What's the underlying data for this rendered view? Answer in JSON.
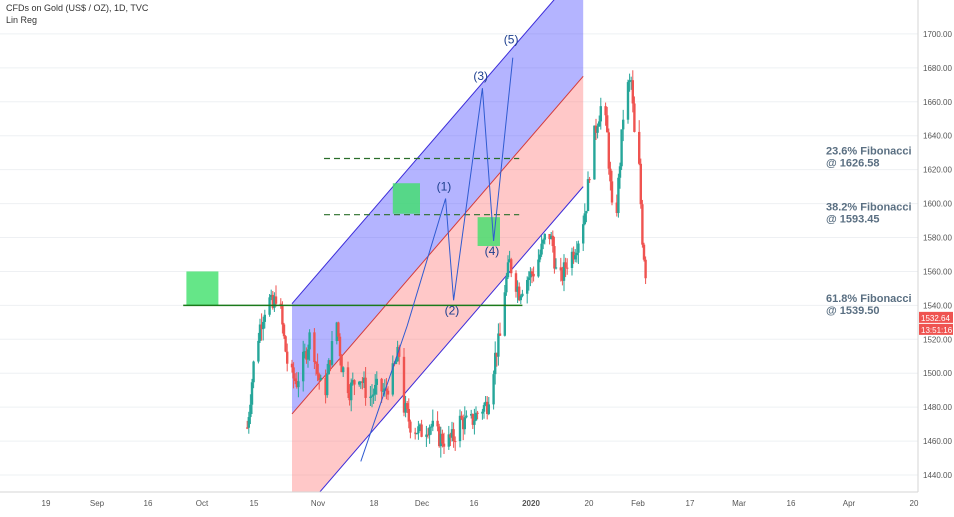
{
  "header": {
    "title": "CFDs on Gold (US$ / OZ), 1D, TVC",
    "indicator": "Lin Reg"
  },
  "colors": {
    "up": "#26a69a",
    "down": "#ef5350",
    "upper_channel": "#4c4cff",
    "lower_channel": "#ff7b7b",
    "channel_line": "#3b2bd9",
    "support": "#1b7a1b",
    "fib_line": "#2a6e2a",
    "fib_text": "#5a6f82",
    "highlight": "#3ee06a",
    "price_badge": "#ef5350"
  },
  "chart_data": {
    "type": "candlestick",
    "title": "CFDs on Gold (US$ / OZ), 1D, TVC",
    "ylim": [
      1430,
      1720
    ],
    "yticks": [
      1440,
      1460,
      1480,
      1500,
      1520,
      1540,
      1560,
      1580,
      1600,
      1620,
      1640,
      1660,
      1680,
      1700
    ],
    "xticks": [
      "19",
      "Sep",
      "16",
      "Oct",
      "15",
      "Nov",
      "18",
      "Dec",
      "16",
      "2020",
      "20",
      "Feb",
      "17",
      "Mar",
      "16",
      "Apr",
      "20"
    ],
    "bold_xtick": "2020",
    "candles_anchor": [
      {
        "day": -28,
        "close": 1468
      },
      {
        "day": -24,
        "close": 1505
      },
      {
        "day": -20,
        "close": 1528
      },
      {
        "day": -15,
        "close": 1545
      },
      {
        "day": -12,
        "close": 1538
      },
      {
        "day": -9,
        "close": 1550
      },
      {
        "day": -5,
        "close": 1520
      },
      {
        "day": -2,
        "close": 1500
      },
      {
        "day": 3,
        "close": 1495
      },
      {
        "day": 8,
        "close": 1510
      },
      {
        "day": 12,
        "close": 1525
      },
      {
        "day": 16,
        "close": 1500
      },
      {
        "day": 20,
        "close": 1485
      },
      {
        "day": 24,
        "close": 1510
      },
      {
        "day": 28,
        "close": 1530
      },
      {
        "day": 31,
        "close": 1505
      },
      {
        "day": 36,
        "close": 1490
      },
      {
        "day": 42,
        "close": 1500
      },
      {
        "day": 48,
        "close": 1485
      },
      {
        "day": 54,
        "close": 1492
      },
      {
        "day": 58,
        "close": 1488
      },
      {
        "day": 63,
        "close": 1500
      },
      {
        "day": 66,
        "close": 1510
      },
      {
        "day": 68,
        "close": 1512
      },
      {
        "day": 70,
        "close": 1480
      },
      {
        "day": 74,
        "close": 1470
      },
      {
        "day": 80,
        "close": 1465
      },
      {
        "day": 86,
        "close": 1470
      },
      {
        "day": 92,
        "close": 1462
      },
      {
        "day": 97,
        "close": 1460
      },
      {
        "day": 101,
        "close": 1462
      },
      {
        "day": 105,
        "close": 1472
      },
      {
        "day": 111,
        "close": 1470
      },
      {
        "day": 117,
        "close": 1478
      },
      {
        "day": 122,
        "close": 1482
      },
      {
        "day": 127,
        "close": 1510
      },
      {
        "day": 131,
        "close": 1525
      },
      {
        "day": 133,
        "close": 1550
      },
      {
        "day": 136,
        "close": 1565
      },
      {
        "day": 139,
        "close": 1556
      },
      {
        "day": 142,
        "close": 1548
      },
      {
        "day": 146,
        "close": 1555
      },
      {
        "day": 151,
        "close": 1560
      },
      {
        "day": 155,
        "close": 1570
      },
      {
        "day": 160,
        "close": 1585
      },
      {
        "day": 163,
        "close": 1575
      },
      {
        "day": 165,
        "close": 1560
      },
      {
        "day": 168,
        "close": 1555
      },
      {
        "day": 172,
        "close": 1566
      },
      {
        "day": 176,
        "close": 1572
      },
      {
        "day": 180,
        "close": 1582
      },
      {
        "day": 184,
        "close": 1600
      },
      {
        "day": 187,
        "close": 1630
      },
      {
        "day": 191,
        "close": 1650
      },
      {
        "day": 194,
        "close": 1660
      },
      {
        "day": 197,
        "close": 1640
      },
      {
        "day": 200,
        "close": 1595
      },
      {
        "day": 202,
        "close": 1585
      },
      {
        "day": 205,
        "close": 1625
      },
      {
        "day": 208,
        "close": 1665
      },
      {
        "day": 212,
        "close": 1672
      },
      {
        "day": 214,
        "close": 1640
      },
      {
        "day": 217,
        "close": 1620
      },
      {
        "day": 219,
        "close": 1580
      },
      {
        "day": 221,
        "close": 1560
      },
      {
        "day": 223,
        "close": 1535
      }
    ],
    "regression_channel": {
      "start_date": "2019-10-28",
      "end_date": "2020-04-27",
      "mid_start": 1476,
      "mid_end": 1675,
      "width": 65
    },
    "support_line": {
      "value": 1540,
      "from": "2019-08-21",
      "to": "2020-03-20"
    },
    "fibonacci": [
      {
        "label": "23.6% Fibonacci",
        "value_text": "@ 1626.58",
        "value": 1626.58
      },
      {
        "label": "38.2% Fibonacci",
        "value_text": "@ 1593.45",
        "value": 1593.45
      },
      {
        "label": "61.8% Fibonacci",
        "value_text": "@ 1539.50",
        "value": 1539.5
      }
    ],
    "fib_line_from": "2019-11-17",
    "fib_line_to": "2020-03-18",
    "wave_labels": [
      "(1)",
      "(2)",
      "(3)",
      "(4)",
      "(5)"
    ],
    "highlight_boxes": [
      {
        "from": "2019-08-23",
        "to": "2019-09-12",
        "low": 1540,
        "high": 1560
      },
      {
        "from": "2019-12-30",
        "to": "2020-01-16",
        "low": 1594,
        "high": 1612
      },
      {
        "from": "2020-02-21",
        "to": "2020-03-06",
        "low": 1575,
        "high": 1592
      }
    ],
    "last_price": "1532.64",
    "countdown": "13:51:16"
  }
}
